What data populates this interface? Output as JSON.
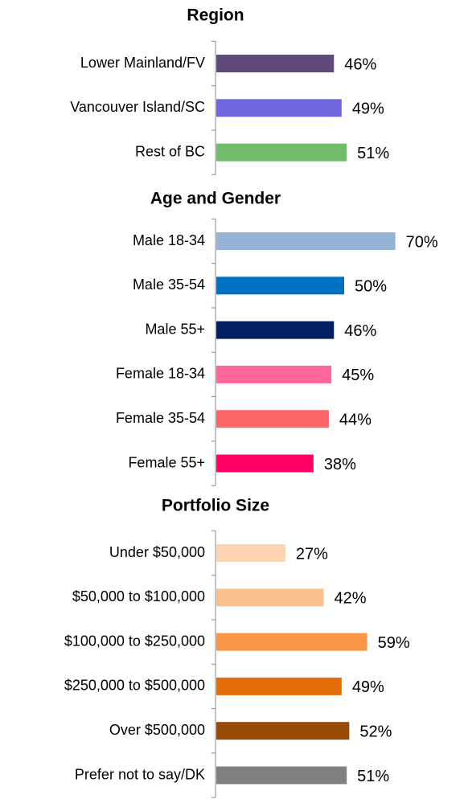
{
  "chart_data": [
    {
      "type": "bar",
      "title": "Region",
      "categories": [
        "Lower Mainland/FV",
        "Vancouver Island/SC",
        "Rest of BC"
      ],
      "values": [
        46,
        49,
        51
      ],
      "value_labels": [
        "46%",
        "49%",
        "51%"
      ],
      "colors": [
        "#604a7b",
        "#6f66dc",
        "#72bb6a"
      ]
    },
    {
      "type": "bar",
      "title": "Age and Gender",
      "categories": [
        "Male 18-34",
        "Male 35-54",
        "Male 55+",
        "Female 18-34",
        "Female 35-54",
        "Female 55+"
      ],
      "values": [
        70,
        50,
        46,
        45,
        44,
        38
      ],
      "value_labels": [
        "70%",
        "50%",
        "46%",
        "45%",
        "44%",
        "38%"
      ],
      "colors": [
        "#95b3d7",
        "#0070c0",
        "#002060",
        "#ff6699",
        "#ff6666",
        "#ff0066"
      ]
    },
    {
      "type": "bar",
      "title": "Portfolio Size",
      "categories": [
        "Under $50,000",
        "$50,000 to $100,000",
        "$100,000 to $250,000",
        "$250,000 to $500,000",
        "Over $500,000",
        "Prefer not to say/DK"
      ],
      "values": [
        27,
        42,
        59,
        49,
        52,
        51
      ],
      "value_labels": [
        "27%",
        "42%",
        "59%",
        "49%",
        "52%",
        "51%"
      ],
      "colors": [
        "#fcd5b5",
        "#fac090",
        "#f79646",
        "#e46c0a",
        "#984807",
        "#808080"
      ]
    }
  ]
}
